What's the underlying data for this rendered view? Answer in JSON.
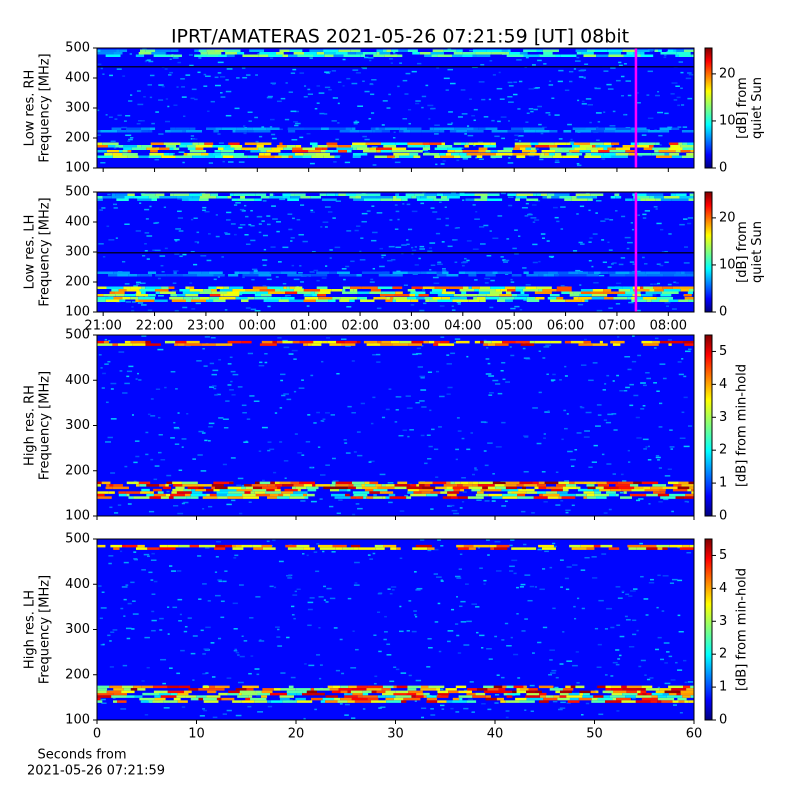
{
  "title": "IPRT/AMATERAS 2021-05-26 07:21:59 [UT]   08bit",
  "chart_data": [
    {
      "type": "heatmap",
      "ylabel": [
        "Low res. RH",
        "Frequency [MHz]"
      ],
      "ylim": [
        100,
        500
      ],
      "yticks": [
        100,
        200,
        300,
        400,
        500
      ],
      "xlim": [
        20.88,
        32.5
      ],
      "xticks": [
        21,
        22,
        23,
        24,
        25,
        26,
        27,
        28,
        29,
        30,
        31,
        32
      ],
      "xticklabels": false,
      "marker_x": 31.37,
      "marker_color": "#ff00ff",
      "colorbar_label": [
        "[dB] from",
        "quiet Sun"
      ],
      "clim": [
        0,
        25.5
      ],
      "cticks": [
        0,
        10,
        20
      ],
      "resolution": "low"
    },
    {
      "type": "heatmap",
      "ylabel": [
        "Low res. LH",
        "Frequency [MHz]"
      ],
      "ylim": [
        100,
        500
      ],
      "yticks": [
        100,
        200,
        300,
        400,
        500
      ],
      "xlim": [
        20.88,
        32.5
      ],
      "xticks": [
        {
          "value": 21,
          "label": "21:00"
        },
        {
          "value": 22,
          "label": "22:00"
        },
        {
          "value": 23,
          "label": "23:00"
        },
        {
          "value": 24,
          "label": "00:00"
        },
        {
          "value": 25,
          "label": "01:00"
        },
        {
          "value": 26,
          "label": "02:00"
        },
        {
          "value": 27,
          "label": "03:00"
        },
        {
          "value": 28,
          "label": "04:00"
        },
        {
          "value": 29,
          "label": "05:00"
        },
        {
          "value": 30,
          "label": "06:00"
        },
        {
          "value": 31,
          "label": "07:00"
        },
        {
          "value": 32,
          "label": "08:00"
        }
      ],
      "xticklabels": true,
      "marker_x": 31.37,
      "marker_color": "#ff00ff",
      "colorbar_label": [
        "[dB] from",
        "quiet Sun"
      ],
      "clim": [
        0,
        25.5
      ],
      "cticks": [
        0,
        10,
        20
      ],
      "resolution": "low"
    },
    {
      "type": "heatmap",
      "ylabel": [
        "High res. RH",
        "Frequency [MHz]"
      ],
      "ylim": [
        100,
        500
      ],
      "yticks": [
        100,
        200,
        300,
        400,
        500
      ],
      "xlim": [
        0,
        60
      ],
      "xticks": [
        0,
        10,
        20,
        30,
        40,
        50,
        60
      ],
      "xticklabels": false,
      "colorbar_label": [
        "[dB] from min-hold"
      ],
      "clim": [
        0,
        5.5
      ],
      "cticks": [
        0,
        1,
        2,
        3,
        4,
        5
      ],
      "resolution": "high"
    },
    {
      "type": "heatmap",
      "ylabel": [
        "High res. LH",
        "Frequency [MHz]"
      ],
      "ylim": [
        100,
        500
      ],
      "yticks": [
        100,
        200,
        300,
        400,
        500
      ],
      "xlim": [
        0,
        60
      ],
      "xticks": [
        0,
        10,
        20,
        30,
        40,
        50,
        60
      ],
      "xticklabels": true,
      "xlabel": [
        "Seconds from",
        "2021-05-26 07:21:59"
      ],
      "colorbar_label": [
        "[dB] from min-hold"
      ],
      "clim": [
        0,
        5.5
      ],
      "cticks": [
        0,
        1,
        2,
        3,
        4,
        5
      ],
      "resolution": "high"
    }
  ]
}
